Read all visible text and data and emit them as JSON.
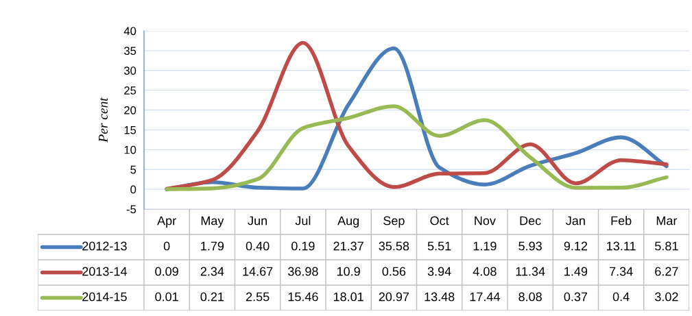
{
  "chart_data": {
    "type": "line",
    "ylabel": "Per cent",
    "categories": [
      "Apr",
      "May",
      "Jun",
      "Jul",
      "Aug",
      "Sep",
      "Oct",
      "Nov",
      "Dec",
      "Jan",
      "Feb",
      "Mar"
    ],
    "series": [
      {
        "name": "2012-13",
        "color": "#4a7ebb",
        "values": [
          0,
          1.79,
          0.4,
          0.19,
          21.37,
          35.58,
          5.51,
          1.19,
          5.93,
          9.12,
          13.11,
          5.81
        ],
        "value_labels": [
          "0",
          "1.79",
          "0.40",
          "0.19",
          "21.37",
          "35.58",
          "5.51",
          "1.19",
          "5.93",
          "9.12",
          "13.11",
          "5.81"
        ]
      },
      {
        "name": "2013-14",
        "color": "#be4b48",
        "values": [
          0.09,
          2.34,
          14.67,
          36.98,
          10.9,
          0.56,
          3.94,
          4.08,
          11.34,
          1.49,
          7.34,
          6.27
        ],
        "value_labels": [
          "0.09",
          "2.34",
          "14.67",
          "36.98",
          "10.9",
          "0.56",
          "3.94",
          "4.08",
          "11.34",
          "1.49",
          "7.34",
          "6.27"
        ]
      },
      {
        "name": "2014-15",
        "color": "#98b954",
        "values": [
          0.01,
          0.21,
          2.55,
          15.46,
          18.01,
          20.97,
          13.48,
          17.44,
          8.08,
          0.37,
          0.4,
          3.02
        ],
        "value_labels": [
          "0.01",
          "0.21",
          "2.55",
          "15.46",
          "18.01",
          "20.97",
          "13.48",
          "17.44",
          "8.08",
          "0.37",
          "0.4",
          "3.02"
        ]
      }
    ],
    "ylim": [
      -5,
      40
    ],
    "yticks": [
      -5,
      0,
      5,
      10,
      15,
      20,
      25,
      30,
      35,
      40
    ],
    "grid": "y",
    "legend": "bottom",
    "marker": "none",
    "line_style": "solid"
  }
}
